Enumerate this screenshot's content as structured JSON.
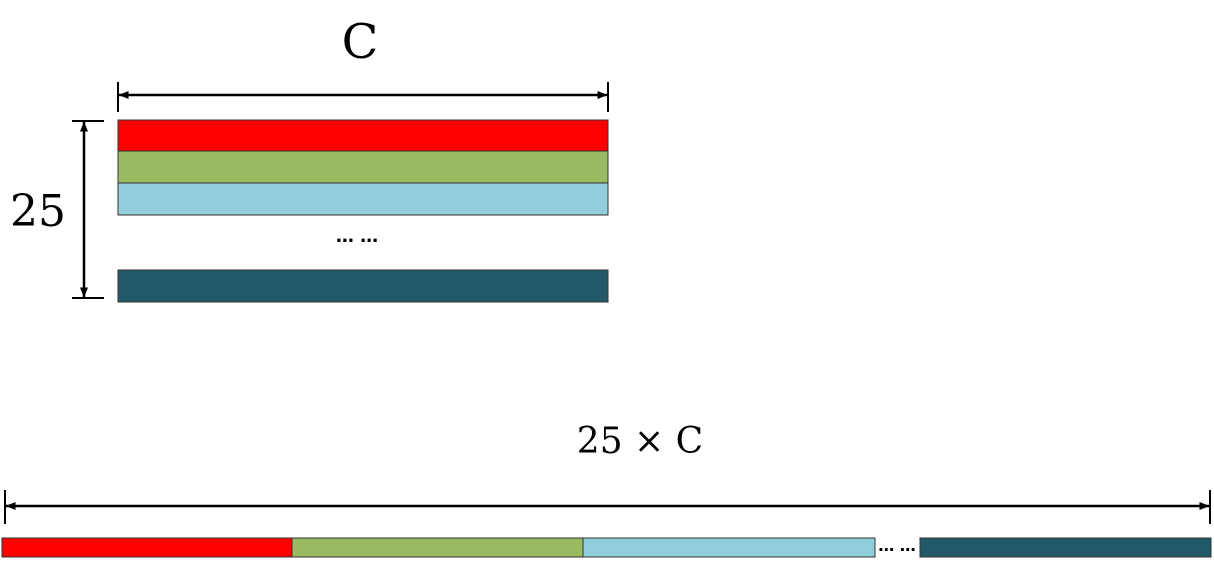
{
  "top_matrix": {
    "width_label": "C",
    "height_label": "25",
    "ellipsis": "… …",
    "rows": [
      {
        "name": "row-1",
        "color": "#ff0000"
      },
      {
        "name": "row-2",
        "color": "#9bbb63"
      },
      {
        "name": "row-3",
        "color": "#92cddc"
      },
      {
        "name": "row-last",
        "color": "#215968"
      }
    ]
  },
  "bottom_vector": {
    "length_label": "25 × C",
    "ellipsis": "… …",
    "segments": [
      {
        "name": "segment-1",
        "color": "#ff0000"
      },
      {
        "name": "segment-2",
        "color": "#9bbb63"
      },
      {
        "name": "segment-3",
        "color": "#92cddc"
      },
      {
        "name": "segment-last",
        "color": "#215968"
      }
    ]
  }
}
